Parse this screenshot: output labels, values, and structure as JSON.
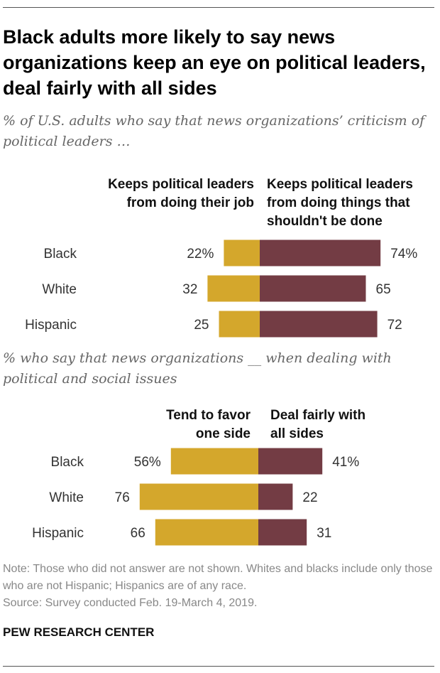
{
  "title": "Black adults more likely to say news organizations keep an eye on political leaders, deal fairly with all sides",
  "subtitle": "% of U.S. adults who say that news organizations’ criticism of political leaders …",
  "note": "Note: Those who did not answer are not shown. Whites and blacks include only those who are not Hispanic; Hispanics are of any race.",
  "source": "Source: Survey conducted Feb. 19-March 4, 2019.",
  "brand": "PEW RESEARCH CENTER",
  "colors": {
    "left_series": "#D4A72C",
    "right_series": "#733C44"
  },
  "chart_data": [
    {
      "type": "bar",
      "title": "",
      "subtitle": "",
      "categories": [
        "Black",
        "White",
        "Hispanic"
      ],
      "series": [
        {
          "name": "Keeps political leaders from doing their job",
          "values": [
            22,
            32,
            25
          ],
          "labels": [
            "22%",
            "32",
            "25"
          ]
        },
        {
          "name": "Keeps political leaders from doing things that shouldn't be done",
          "values": [
            74,
            65,
            72
          ],
          "labels": [
            "74%",
            "65",
            "72"
          ]
        }
      ]
    },
    {
      "type": "bar",
      "title": "",
      "subtitle": "% who say that news organizations __ when dealing with political and social issues",
      "categories": [
        "Black",
        "White",
        "Hispanic"
      ],
      "series": [
        {
          "name": "Tend to favor one side",
          "values": [
            56,
            76,
            66
          ],
          "labels": [
            "56%",
            "76",
            "66"
          ]
        },
        {
          "name": "Deal fairly with all sides",
          "values": [
            41,
            22,
            31
          ],
          "labels": [
            "41%",
            "22",
            "31"
          ]
        }
      ]
    }
  ]
}
